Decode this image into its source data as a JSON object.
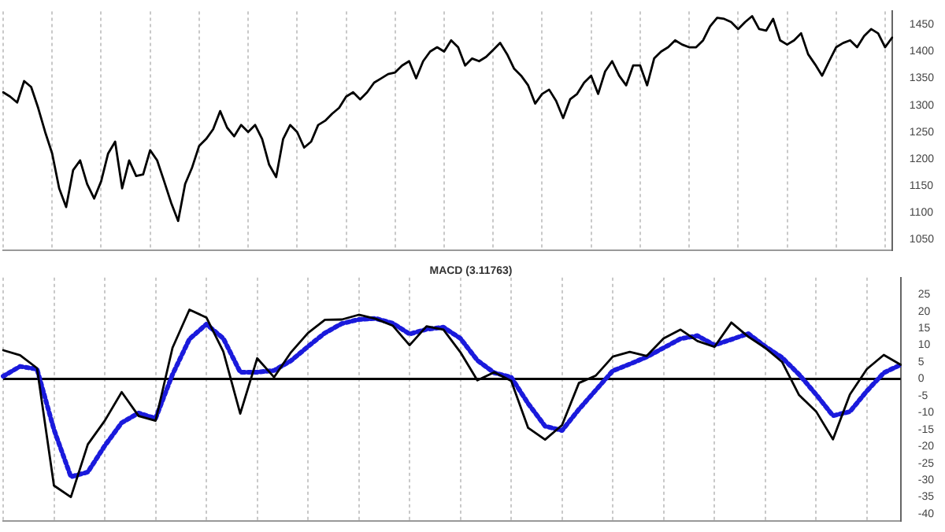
{
  "chart_data": [
    {
      "type": "line",
      "categories": [
        null,
        null,
        null,
        null,
        null,
        null,
        null,
        null,
        null,
        null,
        null,
        null,
        null,
        null,
        null,
        null,
        null,
        null,
        null,
        null,
        null,
        null,
        null,
        null,
        null,
        null,
        null,
        null,
        null,
        null,
        null,
        null,
        null,
        null,
        null,
        null,
        null,
        null,
        null,
        null,
        null,
        null,
        null,
        null,
        null,
        null,
        null,
        null,
        null,
        null,
        null,
        null,
        null,
        null,
        null,
        null,
        null,
        null,
        null,
        null,
        null,
        null,
        null,
        null,
        null,
        null,
        null,
        null,
        null,
        null,
        null,
        null,
        null,
        null,
        null,
        null,
        null,
        null,
        null,
        null,
        null,
        null,
        null,
        null,
        null,
        null,
        null,
        null,
        null,
        null,
        null,
        null,
        null,
        null,
        null,
        null,
        null,
        null,
        null,
        null,
        null,
        null,
        null,
        null,
        null,
        null,
        null,
        null,
        null,
        null,
        null,
        null,
        null,
        null,
        null,
        null,
        null,
        null,
        null,
        null,
        null,
        null,
        null,
        null,
        null,
        null,
        null,
        null
      ],
      "series": [
        {
          "color": "#000000",
          "values": [
            1324,
            1316,
            1305,
            1345,
            1334,
            1295,
            1250,
            1210,
            1145,
            1110,
            1179,
            1197,
            1153,
            1126,
            1158,
            1210,
            1232,
            1145,
            1197,
            1168,
            1171,
            1216,
            1197,
            1158,
            1118,
            1084,
            1153,
            1184,
            1224,
            1237,
            1255,
            1289,
            1258,
            1242,
            1263,
            1250,
            1263,
            1237,
            1189,
            1166,
            1237,
            1263,
            1250,
            1221,
            1232,
            1263,
            1271,
            1284,
            1295,
            1316,
            1324,
            1311,
            1324,
            1342,
            1350,
            1358,
            1361,
            1374,
            1382,
            1350,
            1382,
            1400,
            1408,
            1400,
            1421,
            1408,
            1374,
            1387,
            1382,
            1390,
            1403,
            1416,
            1395,
            1368,
            1355,
            1337,
            1303,
            1321,
            1329,
            1308,
            1276,
            1311,
            1321,
            1342,
            1355,
            1321,
            1363,
            1382,
            1355,
            1337,
            1374,
            1374,
            1337,
            1387,
            1400,
            1408,
            1421,
            1413,
            1408,
            1408,
            1421,
            1447,
            1463,
            1461,
            1455,
            1442,
            1455,
            1466,
            1442,
            1439,
            1461,
            1421,
            1413,
            1421,
            1434,
            1395,
            1376,
            1355,
            1382,
            1408,
            1416,
            1421,
            1408,
            1429,
            1442,
            1434,
            1408,
            1426
          ]
        }
      ],
      "ylim": [
        1030,
        1475
      ],
      "yticks": [
        1050,
        1100,
        1150,
        1200,
        1250,
        1300,
        1350,
        1400,
        1450
      ],
      "grid": "x",
      "tick_labels": "y",
      "line_style": "solid"
    },
    {
      "type": "line",
      "title": "MACD (3.11763)",
      "categories": [
        null,
        null,
        null,
        null,
        null,
        null,
        null,
        null,
        null,
        null,
        null,
        null,
        null,
        null,
        null,
        null,
        null,
        null,
        null,
        null,
        null,
        null,
        null,
        null,
        null,
        null,
        null,
        null,
        null,
        null,
        null,
        null,
        null,
        null,
        null,
        null,
        null,
        null,
        null,
        null,
        null,
        null,
        null,
        null,
        null,
        null,
        null,
        null,
        null,
        null,
        null,
        null,
        null,
        null
      ],
      "series": [
        {
          "color": "#000000",
          "line_style": "solid",
          "values": [
            8.5,
            7,
            3.2,
            -31.6,
            -35,
            -19.4,
            -12.4,
            -3.9,
            -11,
            -12.4,
            9.2,
            20.5,
            18.2,
            8.1,
            -10.3,
            6.1,
            0.5,
            7.9,
            13.6,
            17.5,
            17.6,
            19,
            17.8,
            15.8,
            10,
            15.6,
            14.6,
            7.9,
            -0.4,
            2,
            -0.6,
            -14.5,
            -18,
            -13.7,
            -1.2,
            1,
            6.6,
            8,
            6.8,
            12,
            14.6,
            11.2,
            9.5,
            16.7,
            12.5,
            9.2,
            5,
            -4.8,
            -9.6,
            -17.9,
            -4.6,
            2.9,
            7.1,
            4.2
          ]
        },
        {
          "color": "#1a1adc",
          "line_style": "dotted",
          "values": [
            0.8,
            3.7,
            2.9,
            -15,
            -29,
            -27.6,
            -19.8,
            -13,
            -10.1,
            -11.7,
            1.3,
            11.8,
            16.2,
            12,
            2,
            2,
            2.5,
            5.4,
            9.6,
            13.6,
            16.4,
            17.6,
            17.9,
            16.5,
            13.3,
            14.7,
            15.3,
            12,
            5.5,
            1.8,
            0.5,
            -7.3,
            -14,
            -15.3,
            -9,
            -3.3,
            2.4,
            4.4,
            6.5,
            9.2,
            11.9,
            12.8,
            10,
            11.7,
            13.4,
            9.6,
            6.3,
            1.3,
            -4.6,
            -10.9,
            -9.7,
            -3.6,
            1.8,
            4.2
          ]
        }
      ],
      "ylim": [
        -42,
        30
      ],
      "yticks": [
        -40,
        -35,
        -30,
        -25,
        -20,
        -15,
        -10,
        -5,
        0,
        5,
        10,
        15,
        20,
        25
      ],
      "grid": "x",
      "tick_labels": "y",
      "ref_lines": [
        {
          "axis": "y",
          "value": 0,
          "color": "#000000"
        }
      ]
    }
  ]
}
